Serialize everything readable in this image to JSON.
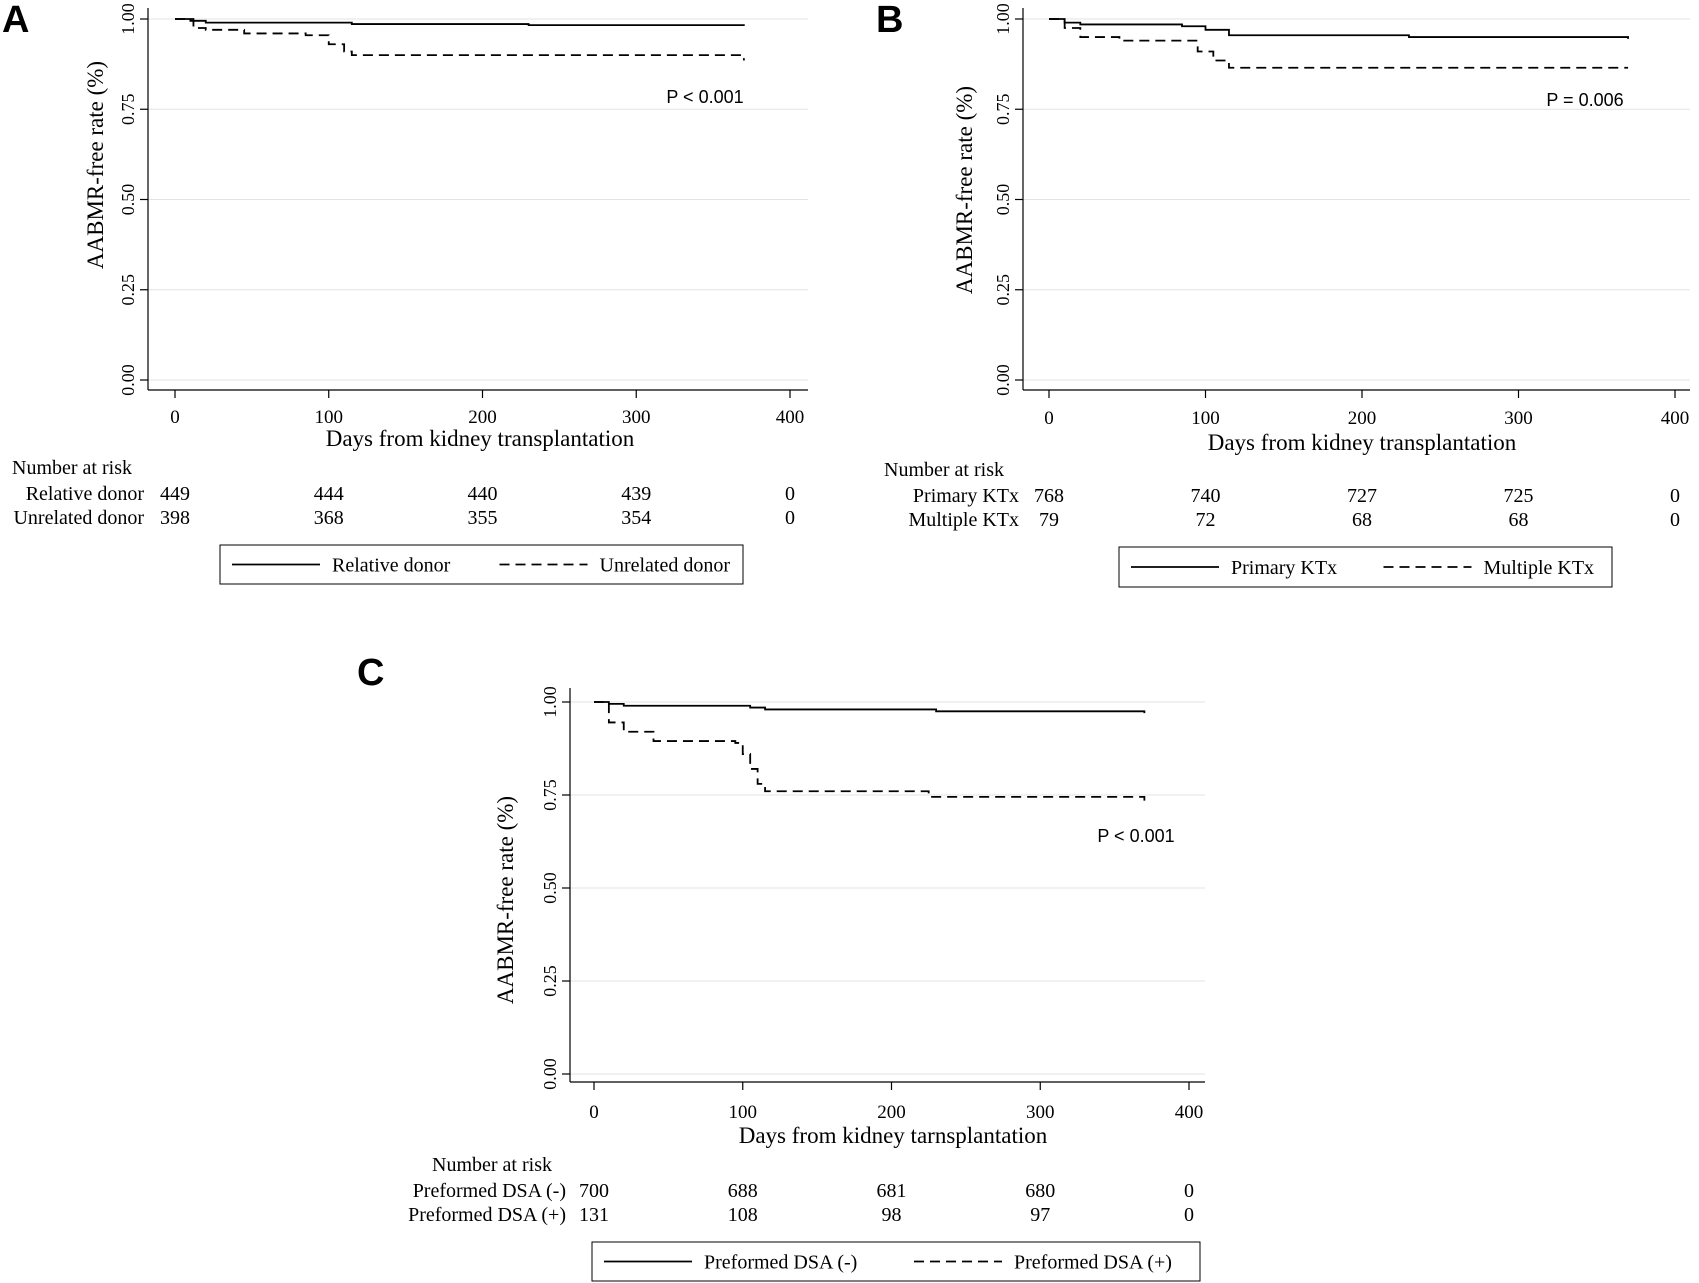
{
  "chart_data": [
    {
      "type": "line",
      "panel": "A",
      "ylabel": "AABMR-free rate (%)",
      "xlabel": "Days from kidney transplantation",
      "xlim": [
        0,
        400
      ],
      "ylim": [
        0,
        1
      ],
      "xticks": [
        "0",
        "100",
        "200",
        "300",
        "400"
      ],
      "yticks": [
        "0.00",
        "0.25",
        "0.50",
        "0.75",
        "1.00"
      ],
      "grid": "horizontal",
      "p_value": "P < 0.001",
      "series": [
        {
          "name": "Relative donor",
          "style": "solid",
          "x": [
            0,
            10,
            20,
            115,
            230,
            370
          ],
          "y": [
            1.0,
            0.995,
            0.99,
            0.986,
            0.983,
            0.981
          ]
        },
        {
          "name": "Unrelated donor",
          "style": "dashed",
          "x": [
            0,
            12,
            20,
            45,
            85,
            100,
            110,
            115,
            370
          ],
          "y": [
            1.0,
            0.975,
            0.97,
            0.96,
            0.955,
            0.93,
            0.91,
            0.9,
            0.885
          ]
        }
      ],
      "risk_table": {
        "title": "Number at risk",
        "rows": [
          {
            "label": "Relative donor",
            "counts": [
              "449",
              "444",
              "440",
              "439",
              "0"
            ]
          },
          {
            "label": "Unrelated donor",
            "counts": [
              "398",
              "368",
              "355",
              "354",
              "0"
            ]
          }
        ]
      }
    },
    {
      "type": "line",
      "panel": "B",
      "ylabel": "AABMR-free rate (%)",
      "xlabel": "Days from kidney transplantation",
      "xlim": [
        0,
        400
      ],
      "ylim": [
        0,
        1
      ],
      "xticks": [
        "0",
        "100",
        "200",
        "300",
        "400"
      ],
      "yticks": [
        "0.00",
        "0.25",
        "0.50",
        "0.75",
        "1.00"
      ],
      "grid": "horizontal",
      "p_value": "P = 0.006",
      "series": [
        {
          "name": "Primary KTx",
          "style": "solid",
          "x": [
            0,
            10,
            20,
            85,
            100,
            115,
            230,
            370
          ],
          "y": [
            1.0,
            0.99,
            0.985,
            0.98,
            0.97,
            0.955,
            0.95,
            0.945
          ]
        },
        {
          "name": "Multiple KTx",
          "style": "dashed",
          "x": [
            0,
            10,
            20,
            45,
            95,
            105,
            115,
            370
          ],
          "y": [
            1.0,
            0.975,
            0.95,
            0.94,
            0.91,
            0.885,
            0.865,
            0.865
          ]
        }
      ],
      "risk_table": {
        "title": "Number at risk",
        "rows": [
          {
            "label": "Primary KTx",
            "counts": [
              "768",
              "740",
              "727",
              "725",
              "0"
            ]
          },
          {
            "label": "Multiple KTx",
            "counts": [
              "79",
              "72",
              "68",
              "68",
              "0"
            ]
          }
        ]
      }
    },
    {
      "type": "line",
      "panel": "C",
      "ylabel": "AABMR-free rate (%)",
      "xlabel": "Days from kidney tarnsplantation",
      "xlim": [
        0,
        400
      ],
      "ylim": [
        0,
        1
      ],
      "xticks": [
        "0",
        "100",
        "200",
        "300",
        "400"
      ],
      "yticks": [
        "0.00",
        "0.25",
        "0.50",
        "0.75",
        "1.00"
      ],
      "grid": "horizontal",
      "p_value": "P < 0.001",
      "series": [
        {
          "name": "Preformed DSA (-)",
          "style": "solid",
          "x": [
            0,
            10,
            20,
            95,
            105,
            115,
            230,
            370
          ],
          "y": [
            1.0,
            0.995,
            0.99,
            0.99,
            0.985,
            0.98,
            0.975,
            0.97
          ]
        },
        {
          "name": "Preformed DSA (+)",
          "style": "dashed",
          "x": [
            0,
            10,
            20,
            40,
            95,
            100,
            105,
            110,
            115,
            225,
            370
          ],
          "y": [
            1.0,
            0.945,
            0.92,
            0.895,
            0.89,
            0.86,
            0.82,
            0.78,
            0.76,
            0.745,
            0.735
          ]
        }
      ],
      "risk_table": {
        "title": "Number at risk",
        "rows": [
          {
            "label": "Preformed DSA (-)",
            "counts": [
              "700",
              "688",
              "681",
              "680",
              "0"
            ]
          },
          {
            "label": "Preformed DSA (+)",
            "counts": [
              "131",
              "108",
              "98",
              "97",
              "0"
            ]
          }
        ]
      }
    }
  ]
}
